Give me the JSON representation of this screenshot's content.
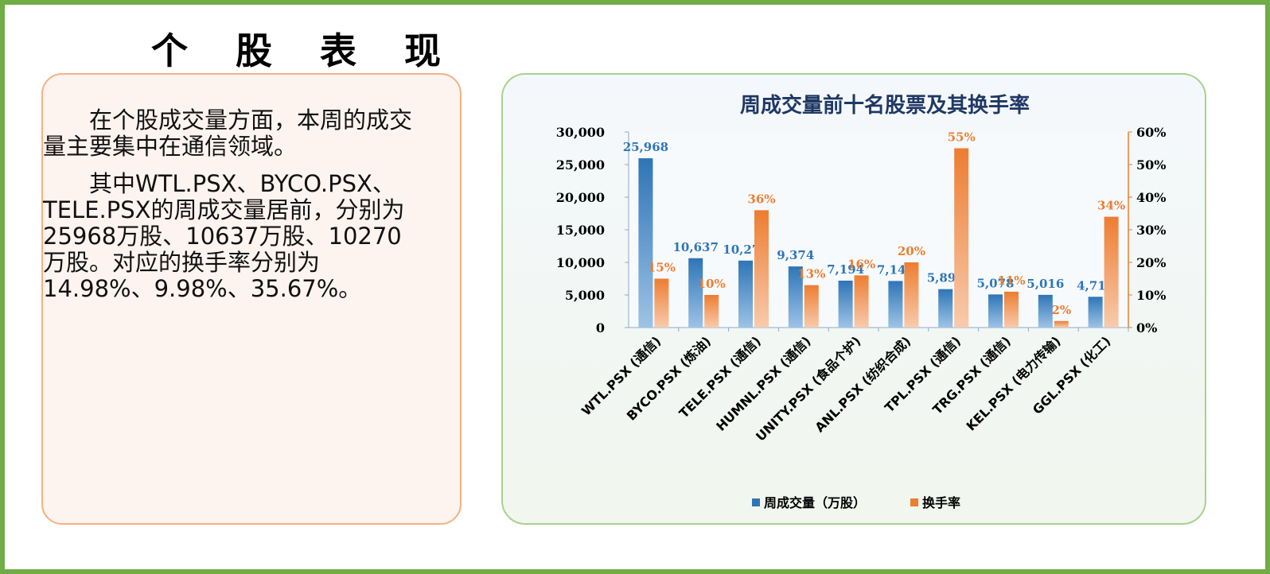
{
  "page_title": "个 股 表 现",
  "text": {
    "para1": "在个股成交量方面，本周的成交量主要集中在通信领域。",
    "para2": "其中WTL.PSX、BYCO.PSX、TELE.PSX的周成交量居前，分别为25968万股、10637万股、10270万股。对应的换手率分别为14.98%、9.98%、35.67%。"
  },
  "colors": {
    "frame": "#70ad47",
    "bar_volume": "#2e75b6",
    "bar_turnover": "#ed7d31",
    "label_volume": "#2e75b6",
    "label_turnover": "#ed7d31",
    "title": "#1f3864"
  },
  "chart_data": {
    "type": "bar",
    "title": "周成交量前十名股票及其换手率",
    "categories": [
      "WTL.PSX (通信)",
      "BYCO.PSX (炼油)",
      "TELE.PSX (通信)",
      "HUMNL.PSX (通信)",
      "UNITY.PSX (食品个护)",
      "ANL.PSX (纺织合成)",
      "TPL.PSX (通信)",
      "TRG.PSX (通信)",
      "KEL.PSX (电力传输)",
      "GGL.PSX (化工)"
    ],
    "series": [
      {
        "name": "周成交量（万股）",
        "axis": "left",
        "values": [
          25968,
          10637,
          10270,
          9374,
          7194,
          7143,
          5890,
          5078,
          5016,
          4718
        ],
        "labels": [
          "25,968",
          "10,637",
          "10,270",
          "9,374",
          "7,194",
          "7,143",
          "5,890",
          "5,078",
          "5,016",
          "4,718"
        ]
      },
      {
        "name": "换手率",
        "axis": "right",
        "values": [
          15,
          10,
          36,
          13,
          16,
          20,
          55,
          11,
          2,
          34
        ],
        "labels": [
          "15%",
          "10%",
          "36%",
          "13%",
          "16%",
          "20%",
          "55%",
          "11%",
          "2%",
          "34%"
        ]
      }
    ],
    "y_left": {
      "ylim": [
        0,
        30000
      ],
      "ticks": [
        0,
        5000,
        10000,
        15000,
        20000,
        25000,
        30000
      ],
      "tick_labels": [
        "0",
        "5,000",
        "10,000",
        "15,000",
        "20,000",
        "25,000",
        "30,000"
      ]
    },
    "y_right": {
      "ylim": [
        0,
        60
      ],
      "ticks": [
        0,
        10,
        20,
        30,
        40,
        50,
        60
      ],
      "tick_labels": [
        "0%",
        "10%",
        "20%",
        "30%",
        "40%",
        "50%",
        "60%"
      ]
    },
    "legend_position": "bottom",
    "grid": false
  }
}
